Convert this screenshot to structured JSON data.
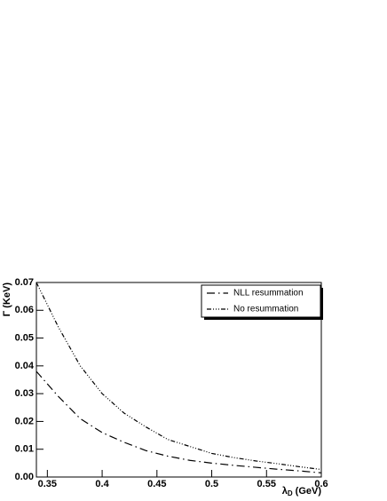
{
  "chart_data": {
    "type": "line",
    "x_label": {
      "symbol": "λ",
      "subscript": "D",
      "unit": "(GeV)"
    },
    "y_label": "Γ (KeV)",
    "x": [
      0.34,
      0.36,
      0.38,
      0.4,
      0.42,
      0.44,
      0.46,
      0.48,
      0.5,
      0.52,
      0.54,
      0.56,
      0.58,
      0.6
    ],
    "series": [
      {
        "name": "NLL resummation",
        "color": "#000000",
        "dash": "9,4,1.5,4",
        "values": [
          0.038,
          0.029,
          0.021,
          0.016,
          0.0125,
          0.0095,
          0.0075,
          0.006,
          0.005,
          0.0042,
          0.0035,
          0.0028,
          0.0022,
          0.0015
        ]
      },
      {
        "name": "No resummation",
        "color": "#000000",
        "dash": "5,2,1,2,1,2,1,2",
        "values": [
          0.07,
          0.054,
          0.04,
          0.03,
          0.023,
          0.018,
          0.0135,
          0.011,
          0.0085,
          0.007,
          0.0058,
          0.0048,
          0.0037,
          0.0027
        ]
      }
    ],
    "xlim": [
      0.34,
      0.6
    ],
    "ylim": [
      0,
      0.07
    ],
    "xticks": [
      0.35,
      0.4,
      0.45,
      0.5,
      0.55,
      0.6
    ],
    "yticks": [
      {
        "value": 0,
        "label": "0.00"
      },
      0.01,
      0.02,
      0.03,
      0.04,
      0.05,
      0.06,
      0.07
    ],
    "legend": "top-right",
    "grid": false
  }
}
